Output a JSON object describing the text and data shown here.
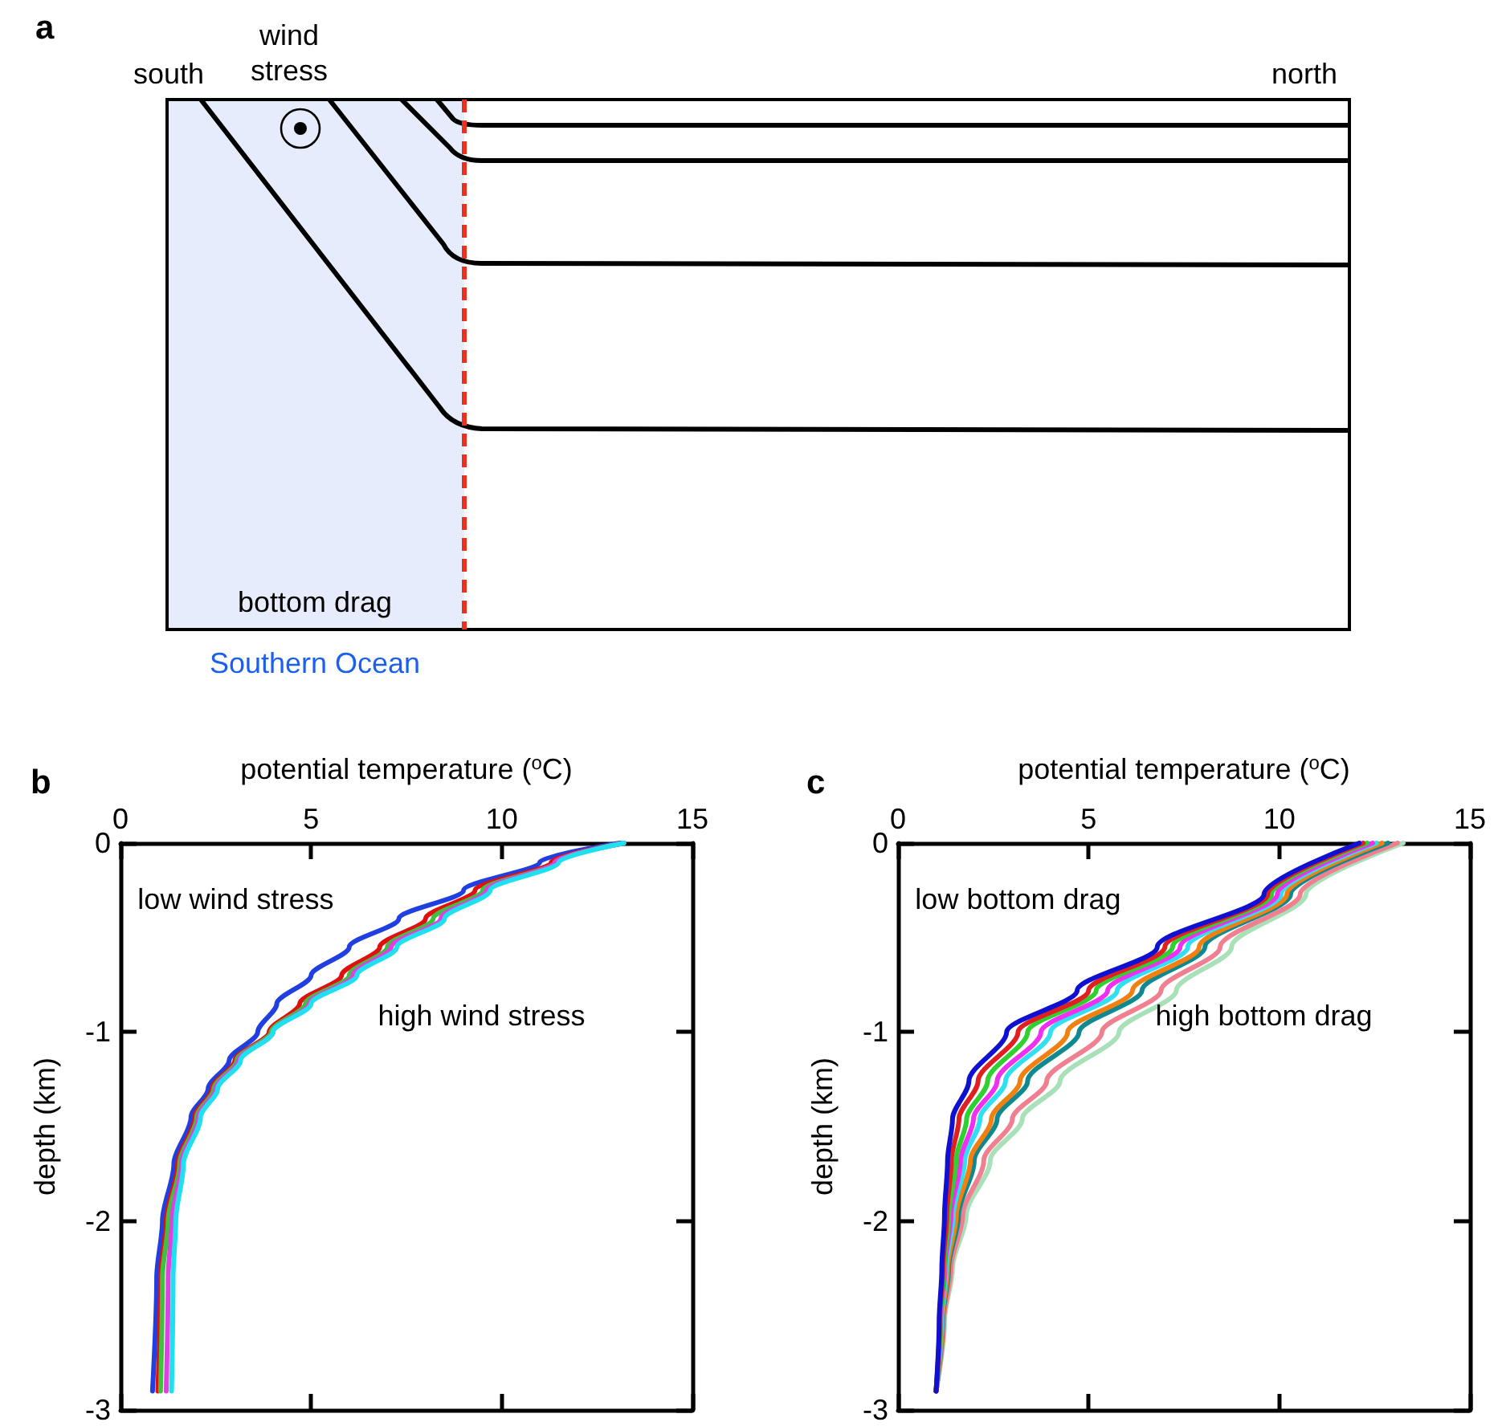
{
  "chart_data": [
    {
      "type": "other",
      "title": "a",
      "annotations": [
        "south",
        "wind\nstress",
        "north",
        "bottom drag",
        "Southern Ocean"
      ]
    },
    {
      "type": "line",
      "title": "b",
      "xlabel": "potential temperature ($^{o}$C)",
      "ylabel": "depth (km)",
      "xlim": [
        0,
        15
      ],
      "xticks": [
        0,
        5,
        10,
        15
      ],
      "ylim": [
        -3,
        0
      ],
      "yticks": [
        -3,
        -2,
        -1,
        0
      ],
      "grid": false,
      "marker": "none",
      "line_style": "solid",
      "annotations": [
        "low wind stress",
        "high wind stress"
      ],
      "series": [
        {
          "color": "#1f3fe0",
          "x": [
            13.1,
            11.0,
            9.0,
            7.3,
            6.0,
            5.0,
            4.1,
            3.6,
            2.85,
            2.3,
            1.85,
            1.4,
            1.1,
            0.95,
            0.84
          ],
          "values": [
            0,
            -0.1,
            -0.25,
            -0.4,
            -0.55,
            -0.7,
            -0.85,
            -1,
            -1.15,
            -1.3,
            -1.45,
            -1.7,
            -2,
            -2.3,
            -2.9
          ]
        },
        {
          "color": "#e01010",
          "x": [
            13.2,
            11.3,
            9.3,
            8.0,
            6.8,
            5.8,
            4.7,
            3.9,
            3.0,
            2.4,
            1.95,
            1.5,
            1.2,
            1.05,
            0.98
          ],
          "values": [
            0,
            -0.1,
            -0.25,
            -0.4,
            -0.55,
            -0.7,
            -0.85,
            -1,
            -1.15,
            -1.3,
            -1.45,
            -1.7,
            -2,
            -2.3,
            -2.9
          ]
        },
        {
          "color": "#40c040",
          "x": [
            13.2,
            11.4,
            9.5,
            8.2,
            7.0,
            6.0,
            4.85,
            3.95,
            3.05,
            2.45,
            2.0,
            1.55,
            1.25,
            1.1,
            1.05
          ],
          "values": [
            0,
            -0.1,
            -0.25,
            -0.4,
            -0.55,
            -0.7,
            -0.85,
            -1,
            -1.15,
            -1.3,
            -1.45,
            -1.7,
            -2,
            -2.3,
            -2.9
          ]
        },
        {
          "color": "#e040e0",
          "x": [
            13.2,
            11.4,
            9.6,
            8.4,
            7.1,
            6.1,
            4.95,
            4.0,
            3.1,
            2.5,
            2.05,
            1.6,
            1.35,
            1.25,
            1.2
          ],
          "values": [
            0,
            -0.1,
            -0.25,
            -0.4,
            -0.55,
            -0.7,
            -0.85,
            -1,
            -1.15,
            -1.3,
            -1.45,
            -1.7,
            -2,
            -2.3,
            -2.9
          ]
        },
        {
          "color": "#20e0f0",
          "x": [
            13.2,
            11.5,
            9.7,
            8.5,
            7.25,
            6.2,
            5.0,
            4.0,
            3.15,
            2.55,
            2.1,
            1.65,
            1.45,
            1.38,
            1.34
          ],
          "values": [
            0,
            -0.1,
            -0.25,
            -0.4,
            -0.55,
            -0.7,
            -0.85,
            -1,
            -1.15,
            -1.3,
            -1.45,
            -1.7,
            -2,
            -2.3,
            -2.9
          ]
        }
      ]
    },
    {
      "type": "line",
      "title": "c",
      "xlabel": "potential temperature ($^{o}$C)",
      "ylabel": "depth (km)",
      "xlim": [
        0,
        15
      ],
      "xticks": [
        0,
        5,
        10,
        15
      ],
      "ylim": [
        -3,
        0
      ],
      "yticks": [
        -3,
        -2,
        -1,
        0
      ],
      "grid": false,
      "marker": "none",
      "line_style": "solid",
      "annotations": [
        "low bottom drag",
        "high bottom drag"
      ],
      "series": [
        {
          "color": "#a8e0b8",
          "x": [
            13.25,
            10.7,
            8.75,
            7.3,
            5.8,
            4.25,
            3.26,
            2.42,
            1.79,
            1.43,
            1.22,
            1.0
          ],
          "values": [
            0,
            -0.27,
            -0.55,
            -0.78,
            -1,
            -1.26,
            -1.46,
            -1.68,
            -1.97,
            -2.25,
            -2.53,
            -2.9
          ]
        },
        {
          "color": "#f08090",
          "x": [
            13.1,
            10.55,
            8.45,
            6.9,
            5.35,
            3.9,
            3.0,
            2.25,
            1.7,
            1.39,
            1.2,
            1.0
          ],
          "values": [
            0,
            -0.27,
            -0.55,
            -0.78,
            -1,
            -1.26,
            -1.46,
            -1.68,
            -1.97,
            -2.25,
            -2.53,
            -2.9
          ]
        },
        {
          "color": "#108890",
          "x": [
            12.85,
            10.3,
            8.05,
            6.4,
            4.75,
            3.4,
            2.6,
            2.0,
            1.59,
            1.33,
            1.17,
            1.0
          ],
          "values": [
            0,
            -0.27,
            -0.55,
            -0.78,
            -1,
            -1.26,
            -1.46,
            -1.68,
            -1.97,
            -2.25,
            -2.53,
            -2.9
          ]
        },
        {
          "color": "#f08010",
          "x": [
            12.7,
            10.2,
            7.9,
            6.15,
            4.45,
            3.2,
            2.45,
            1.9,
            1.53,
            1.3,
            1.16,
            1.0
          ],
          "values": [
            0,
            -0.27,
            -0.55,
            -0.78,
            -1,
            -1.26,
            -1.46,
            -1.68,
            -1.97,
            -2.25,
            -2.53,
            -2.9
          ]
        },
        {
          "color": "#30e0f0",
          "x": [
            12.55,
            10.05,
            7.6,
            5.75,
            4.0,
            2.82,
            2.15,
            1.75,
            1.45,
            1.26,
            1.14,
            1.0
          ],
          "values": [
            0,
            -0.27,
            -0.55,
            -0.78,
            -1,
            -1.26,
            -1.46,
            -1.68,
            -1.97,
            -2.25,
            -2.53,
            -2.9
          ]
        },
        {
          "color": "#f030f0",
          "x": [
            12.45,
            9.95,
            7.4,
            5.5,
            3.75,
            2.6,
            1.98,
            1.64,
            1.39,
            1.23,
            1.12,
            1.0
          ],
          "values": [
            0,
            -0.27,
            -0.55,
            -0.78,
            -1,
            -1.26,
            -1.46,
            -1.68,
            -1.97,
            -2.25,
            -2.53,
            -2.9
          ]
        },
        {
          "color": "#30d030",
          "x": [
            12.3,
            9.8,
            7.2,
            5.2,
            3.4,
            2.35,
            1.8,
            1.52,
            1.33,
            1.21,
            1.11,
            1.0
          ],
          "values": [
            0,
            -0.27,
            -0.55,
            -0.78,
            -1,
            -1.26,
            -1.46,
            -1.68,
            -1.97,
            -2.25,
            -2.53,
            -2.9
          ]
        },
        {
          "color": "#e02020",
          "x": [
            12.2,
            9.7,
            7.0,
            5.0,
            3.15,
            2.1,
            1.6,
            1.4,
            1.28,
            1.18,
            1.09,
            1.0
          ],
          "values": [
            0,
            -0.27,
            -0.55,
            -0.78,
            -1,
            -1.26,
            -1.46,
            -1.68,
            -1.97,
            -2.25,
            -2.53,
            -2.9
          ]
        },
        {
          "color": "#1010d0",
          "x": [
            12.1,
            9.6,
            6.8,
            4.7,
            2.85,
            1.86,
            1.43,
            1.3,
            1.22,
            1.15,
            1.08,
            1.0
          ],
          "values": [
            0,
            -0.27,
            -0.55,
            -0.78,
            -1,
            -1.26,
            -1.46,
            -1.68,
            -1.97,
            -2.25,
            -2.53,
            -2.9
          ]
        }
      ]
    }
  ]
}
